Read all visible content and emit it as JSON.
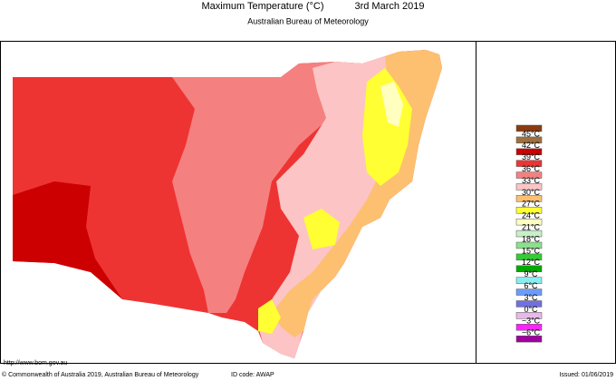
{
  "header": {
    "title": "Maximum Temperature (°C)",
    "date": "3rd March 2019",
    "subtitle": "Australian Bureau of Meteorology"
  },
  "legend": {
    "labels": [
      "45°C",
      "42°C",
      "39°C",
      "36°C",
      "33°C",
      "30°C",
      "27°C",
      "24°C",
      "21°C",
      "18°C",
      "15°C",
      "12°C",
      "9°C",
      "6°C",
      "3°C",
      "0°C",
      "−3°C",
      "−6°C"
    ],
    "colors": [
      "#8b3a0f",
      "#a0703c",
      "#cc0000",
      "#ee3333",
      "#f58080",
      "#fcc4c4",
      "#fcc070",
      "#ffff33",
      "#ffffc0",
      "#c8f0c8",
      "#8ce08c",
      "#33cc33",
      "#00aa00",
      "#88eef0",
      "#6a9cff",
      "#7070e0",
      "#e8b8e8",
      "#ff22ff",
      "#a000a0"
    ]
  },
  "footer": {
    "url": "http://www.bom.gov.au",
    "copyright": "© Commonwealth of Australia 2019, Australian Bureau of Meteorology",
    "id_code": "ID code: AWAP",
    "issued": "Issued: 01/06/2019"
  }
}
